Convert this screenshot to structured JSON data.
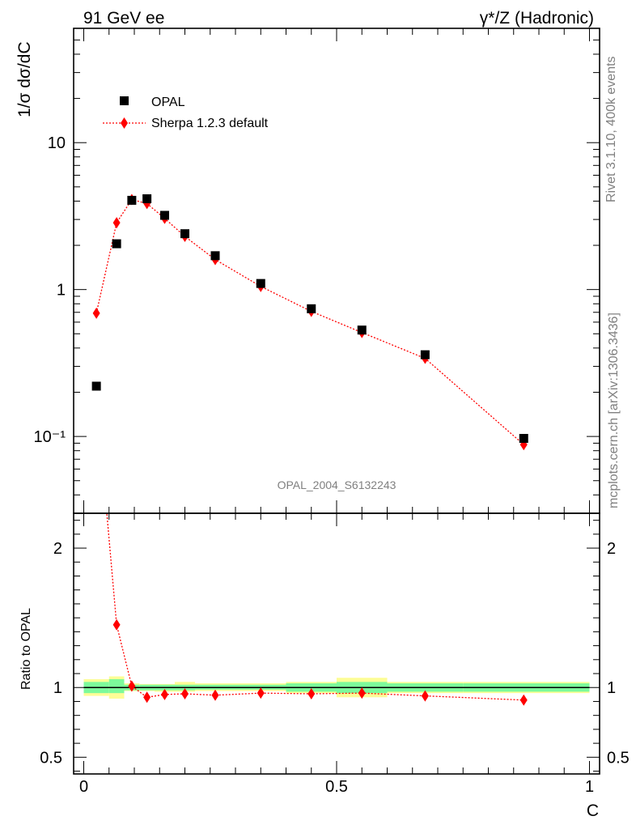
{
  "header": {
    "left_label": "91 GeV ee",
    "right_label": "γ*/Z (Hadronic)"
  },
  "side_labels": {
    "rivet": "Rivet 3.1.10,  400k events",
    "source": "mcplots.cern.ch [arXiv:1306.3436]"
  },
  "analysis_label": "OPAL_2004_S6132243",
  "colors": {
    "data": "#000000",
    "mc": "#ff0000",
    "band_inner": "#7dfa9b",
    "band_outer": "#fdfd96"
  },
  "chart_data": [
    {
      "type": "scatter",
      "title": "",
      "ylabel": "1/σ dσ/dC",
      "xlabel": "",
      "yscale": "log",
      "xlim": [
        -0.02,
        1.02
      ],
      "ylim": [
        0.03,
        60
      ],
      "yticks": [
        {
          "value": 0.1,
          "label": "10⁻¹"
        },
        {
          "value": 1,
          "label": "1"
        },
        {
          "value": 10,
          "label": "10"
        }
      ],
      "legend_position": "top-left",
      "series": [
        {
          "name": "OPAL",
          "marker": "square",
          "x": [
            0.025,
            0.065,
            0.095,
            0.125,
            0.16,
            0.2,
            0.26,
            0.35,
            0.45,
            0.55,
            0.675,
            0.87
          ],
          "y": [
            0.22,
            2.05,
            4.05,
            4.15,
            3.2,
            2.4,
            1.7,
            1.1,
            0.74,
            0.53,
            0.36,
            0.097
          ]
        },
        {
          "name": "Sherpa 1.2.3 default",
          "marker": "diamond",
          "line": "dotted",
          "x": [
            0.025,
            0.065,
            0.095,
            0.125,
            0.16,
            0.2,
            0.26,
            0.35,
            0.45,
            0.55,
            0.675,
            0.87
          ],
          "y": [
            0.69,
            2.85,
            4.1,
            3.85,
            3.05,
            2.3,
            1.6,
            1.05,
            0.71,
            0.51,
            0.34,
            0.088
          ]
        }
      ]
    },
    {
      "type": "line",
      "title": "",
      "ylabel": "Ratio to OPAL",
      "xlabel": "C",
      "xlim": [
        -0.02,
        1.02
      ],
      "ylim": [
        0.38,
        2.25
      ],
      "xticks": [
        {
          "value": 0,
          "label": "0"
        },
        {
          "value": 0.5,
          "label": "0.5"
        },
        {
          "value": 1,
          "label": "1"
        }
      ],
      "yticks": [
        {
          "value": 0.5,
          "label": "0.5"
        },
        {
          "value": 1,
          "label": "1"
        },
        {
          "value": 2,
          "label": "2"
        }
      ],
      "reference_line": 1,
      "uncertainty_bands": [
        {
          "x": [
            0.0,
            0.05
          ],
          "inner": [
            0.96,
            1.04
          ],
          "outer": [
            0.94,
            1.06
          ]
        },
        {
          "x": [
            0.05,
            0.08
          ],
          "inner": [
            0.96,
            1.06
          ],
          "outer": [
            0.92,
            1.08
          ]
        },
        {
          "x": [
            0.08,
            0.11
          ],
          "inner": [
            0.98,
            1.02
          ],
          "outer": [
            0.975,
            1.03
          ]
        },
        {
          "x": [
            0.11,
            0.14
          ],
          "inner": [
            0.98,
            1.02
          ],
          "outer": [
            0.975,
            1.025
          ]
        },
        {
          "x": [
            0.14,
            0.18
          ],
          "inner": [
            0.98,
            1.02
          ],
          "outer": [
            0.97,
            1.025
          ]
        },
        {
          "x": [
            0.18,
            0.22
          ],
          "inner": [
            0.98,
            1.02
          ],
          "outer": [
            0.97,
            1.04
          ]
        },
        {
          "x": [
            0.22,
            0.3
          ],
          "inner": [
            0.985,
            1.02
          ],
          "outer": [
            0.975,
            1.03
          ]
        },
        {
          "x": [
            0.3,
            0.4
          ],
          "inner": [
            0.985,
            1.02
          ],
          "outer": [
            0.975,
            1.03
          ]
        },
        {
          "x": [
            0.4,
            0.5
          ],
          "inner": [
            0.97,
            1.03
          ],
          "outer": [
            0.96,
            1.04
          ]
        },
        {
          "x": [
            0.5,
            0.6
          ],
          "inner": [
            0.96,
            1.04
          ],
          "outer": [
            0.93,
            1.07
          ]
        },
        {
          "x": [
            0.6,
            0.75
          ],
          "inner": [
            0.97,
            1.03
          ],
          "outer": [
            0.96,
            1.04
          ]
        },
        {
          "x": [
            0.75,
            1.0
          ],
          "inner": [
            0.97,
            1.03
          ],
          "outer": [
            0.96,
            1.04
          ]
        }
      ],
      "series": [
        {
          "name": "Sherpa 1.2.3 default",
          "marker": "diamond",
          "line": "dotted",
          "x": [
            0.025,
            0.065,
            0.095,
            0.125,
            0.16,
            0.2,
            0.26,
            0.35,
            0.45,
            0.55,
            0.675,
            0.87
          ],
          "y": [
            3.1,
            1.45,
            1.01,
            0.93,
            0.95,
            0.955,
            0.945,
            0.96,
            0.955,
            0.96,
            0.94,
            0.91
          ]
        }
      ]
    }
  ]
}
